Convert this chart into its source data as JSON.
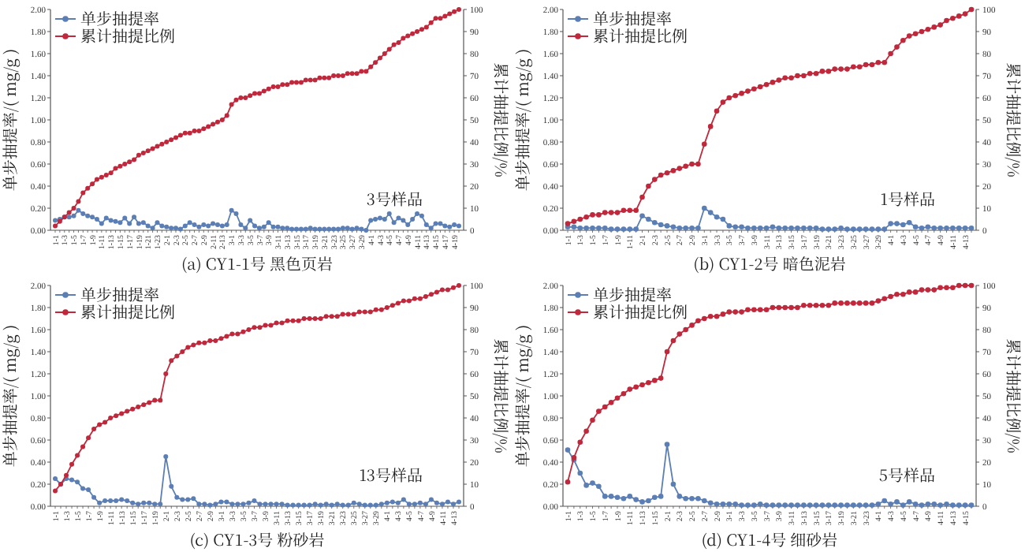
{
  "chart_data": [
    {
      "type": "line",
      "title": "(a) CY1-1号 黑色页岩",
      "ylabel": "单步抽提率/( mg/g )",
      "y2label": "累计抽提比例/%",
      "annotations": [
        "3号样品"
      ],
      "legend": "top left",
      "marker": "circle",
      "grid": false,
      "categories": [
        "1-1",
        null,
        "1-3",
        null,
        "1-5",
        null,
        "1-7",
        null,
        "1-9",
        null,
        "1-11",
        null,
        "1-13",
        null,
        "1-15",
        null,
        "1-17",
        null,
        "1-19",
        null,
        "1-21",
        null,
        "1-23",
        null,
        "2-1",
        null,
        "2-3",
        null,
        "2-5",
        null,
        "2-7",
        null,
        "2-9",
        null,
        "2-11",
        null,
        "2-13",
        null,
        "3-1",
        null,
        "3-3",
        null,
        "3-5",
        null,
        "3-7",
        null,
        "3-9",
        null,
        "3-11",
        null,
        "3-13",
        null,
        "3-15",
        null,
        "3-17",
        null,
        "3-19",
        null,
        "3-21",
        null,
        "3-23",
        null,
        "3-25",
        null,
        "3-27",
        null,
        "3-29",
        null,
        "4-1",
        null,
        "4-3",
        null,
        "4-5",
        null,
        "4-7",
        null,
        "4-9",
        null,
        "4-11",
        null,
        "4-13",
        null,
        "4-15",
        null,
        "4-17",
        null,
        "4-19",
        null
      ],
      "ylim": [
        0,
        2
      ],
      "yticks": [
        {
          "value": 0,
          "label": "0.00"
        },
        {
          "value": 0.2,
          "label": "0.20"
        },
        {
          "value": 0.4,
          "label": "0.40"
        },
        {
          "value": 0.6,
          "label": "0.60"
        },
        {
          "value": 0.8,
          "label": "0.80"
        },
        {
          "value": 1,
          "label": "1.00"
        },
        {
          "value": 1.2,
          "label": "1.20"
        },
        {
          "value": 1.4,
          "label": "1.40"
        },
        {
          "value": 1.6,
          "label": "1.60"
        },
        {
          "value": 1.8,
          "label": "1.80"
        },
        {
          "value": 2,
          "label": "2.00"
        }
      ],
      "y2lim": [
        0,
        100
      ],
      "y2ticks": [
        0,
        10,
        20,
        30,
        40,
        50,
        60,
        70,
        80,
        90,
        100
      ],
      "series": [
        {
          "name": "单步抽提率",
          "color": "#5b7fb5",
          "values": [
            0.09,
            0.1,
            0.12,
            0.12,
            0.13,
            0.18,
            0.15,
            0.13,
            0.12,
            0.1,
            0.06,
            0.11,
            0.09,
            0.08,
            0.07,
            0.11,
            0.06,
            0.12,
            0.06,
            0.07,
            0.04,
            0.02,
            0.07,
            0.04,
            0.03,
            0.02,
            0.02,
            0.01,
            0.04,
            0.07,
            0.05,
            0.03,
            0.05,
            0.04,
            0.06,
            0.05,
            0.04,
            0.05,
            0.18,
            0.15,
            0.05,
            0.02,
            0.09,
            0.04,
            0.02,
            0.03,
            0.07,
            0.03,
            0.03,
            0.02,
            0.02,
            0.01,
            0.01,
            0.01,
            0.01,
            0.02,
            0.01,
            0.01,
            0.01,
            0.01,
            0.01,
            0.01,
            0.02,
            0.02,
            0.01,
            0.02,
            0.01,
            0.0,
            0.09,
            0.1,
            0.11,
            0.1,
            0.15,
            0.07,
            0.11,
            0.09,
            0.05,
            0.1,
            0.15,
            0.13,
            0.05,
            0.02,
            0.06,
            0.06,
            0.04,
            0.03,
            0.05,
            0.04
          ]
        },
        {
          "name": "累计抽提比例",
          "color": "#c0283c",
          "axis": "y2",
          "values": [
            2,
            4,
            6,
            8,
            10,
            13,
            17,
            19,
            21,
            23,
            24,
            25,
            26,
            28,
            29,
            30,
            31,
            32,
            34,
            35,
            36,
            37,
            38,
            39,
            40,
            41,
            42,
            43,
            44,
            44,
            45,
            45,
            46,
            47,
            48,
            49,
            50,
            52,
            57,
            59,
            60,
            60,
            61,
            62,
            62,
            63,
            64,
            65,
            65,
            66,
            66,
            67,
            67,
            67,
            68,
            68,
            68,
            69,
            69,
            69,
            70,
            70,
            70,
            71,
            71,
            71,
            72,
            72,
            74,
            76,
            78,
            80,
            82,
            84,
            85,
            87,
            88,
            89,
            90,
            91,
            92,
            94,
            96,
            96,
            97,
            98,
            99,
            100
          ]
        }
      ]
    },
    {
      "type": "line",
      "title": "(b) CY1-2号 暗色泥岩",
      "ylabel": "单步抽提率/( mg/g )",
      "y2label": "累计抽提比例/%",
      "annotations": [
        "1号样品"
      ],
      "legend": "top left",
      "marker": "circle",
      "grid": false,
      "categories": [
        "1-1",
        null,
        "1-3",
        null,
        "1-5",
        null,
        "1-7",
        null,
        "1-9",
        null,
        "1-11",
        null,
        "2-1",
        null,
        "2-3",
        null,
        "2-5",
        null,
        "2-7",
        null,
        "2-9",
        null,
        "3-1",
        null,
        "3-3",
        null,
        "3-5",
        null,
        "3-7",
        null,
        "3-9",
        null,
        "3-11",
        null,
        "3-13",
        null,
        "3-15",
        null,
        "3-17",
        null,
        "3-19",
        null,
        "3-21",
        null,
        "3-23",
        null,
        "3-25",
        null,
        "3-27",
        null,
        "3-29",
        null,
        "4-1",
        null,
        "4-3",
        null,
        "4-5",
        null,
        "4-7",
        null,
        "4-9",
        null,
        "4-11",
        null,
        "4-13",
        null
      ],
      "ylim": [
        0,
        2
      ],
      "yticks": [
        {
          "value": 0,
          "label": "0.00"
        },
        {
          "value": 0.2,
          "label": "0.20"
        },
        {
          "value": 0.4,
          "label": "0.40"
        },
        {
          "value": 0.6,
          "label": "0.60"
        },
        {
          "value": 0.8,
          "label": "0.80"
        },
        {
          "value": 1,
          "label": "1.00"
        },
        {
          "value": 1.2,
          "label": "1.20"
        },
        {
          "value": 1.4,
          "label": "1.40"
        },
        {
          "value": 1.6,
          "label": "1.60"
        },
        {
          "value": 1.8,
          "label": "1.80"
        },
        {
          "value": 2,
          "label": "2.00"
        }
      ],
      "y2lim": [
        0,
        100
      ],
      "y2ticks": [
        0,
        10,
        20,
        30,
        40,
        50,
        60,
        70,
        80,
        90,
        100
      ],
      "series": [
        {
          "name": "单步抽提率",
          "color": "#5b7fb5",
          "values": [
            0.03,
            0.03,
            0.02,
            0.02,
            0.02,
            0.02,
            0.02,
            0.01,
            0.01,
            0.01,
            0.01,
            0.01,
            0.13,
            0.1,
            0.07,
            0.05,
            0.04,
            0.03,
            0.02,
            0.02,
            0.02,
            0.02,
            0.2,
            0.16,
            0.12,
            0.1,
            0.04,
            0.03,
            0.03,
            0.02,
            0.02,
            0.02,
            0.02,
            0.03,
            0.02,
            0.02,
            0.02,
            0.02,
            0.02,
            0.02,
            0.02,
            0.01,
            0.01,
            0.01,
            0.02,
            0.01,
            0.01,
            0.01,
            0.01,
            0.01,
            0.01,
            0.01,
            0.06,
            0.06,
            0.05,
            0.07,
            0.03,
            0.02,
            0.03,
            0.02,
            0.02,
            0.02,
            0.02,
            0.02,
            0.02,
            0.02
          ]
        },
        {
          "name": "累计抽提比例",
          "color": "#c0283c",
          "axis": "y2",
          "values": [
            3,
            4,
            5,
            6,
            7,
            7,
            8,
            8,
            8,
            9,
            9,
            9,
            15,
            20,
            23,
            25,
            26,
            27,
            28,
            29,
            30,
            30,
            39,
            47,
            54,
            58,
            60,
            61,
            62,
            63,
            64,
            65,
            66,
            67,
            68,
            69,
            69,
            70,
            70,
            71,
            71,
            72,
            72,
            73,
            73,
            73,
            74,
            74,
            75,
            75,
            76,
            76,
            80,
            83,
            86,
            88,
            89,
            90,
            91,
            92,
            93,
            95,
            96,
            97,
            98,
            100
          ]
        }
      ]
    },
    {
      "type": "line",
      "title": "(c)  CY1-3号  粉砂岩",
      "ylabel": "单步抽提率/( mg/g )",
      "y2label": "累计抽提比例/%",
      "annotations": [
        "13号样品"
      ],
      "legend": "top left",
      "marker": "circle",
      "grid": false,
      "categories": [
        "1-1",
        null,
        "1-3",
        null,
        "1-5",
        null,
        "1-7",
        null,
        "1-9",
        null,
        "1-11",
        null,
        "1-13",
        null,
        "1-15",
        null,
        "1-17",
        null,
        "1-19",
        null,
        "2-1",
        null,
        "2-3",
        null,
        "2-5",
        null,
        "2-7",
        null,
        "2-9",
        null,
        "3-1",
        null,
        "3-3",
        null,
        "3-5",
        null,
        "3-7",
        null,
        "3-9",
        null,
        "3-11",
        null,
        "3-13",
        null,
        "3-15",
        null,
        "3-17",
        null,
        "3-19",
        null,
        "3-21",
        null,
        "3-23",
        null,
        "3-25",
        null,
        "3-27",
        null,
        "3-29",
        null,
        "4-1",
        null,
        "4-3",
        null,
        "4-5",
        null,
        "4-7",
        null,
        "4-9",
        null,
        "4-11",
        null,
        "4-13",
        null
      ],
      "ylim": [
        0,
        2
      ],
      "yticks": [
        {
          "value": 0,
          "label": "0.00"
        },
        {
          "value": 0.2,
          "label": "0.20"
        },
        {
          "value": 0.4,
          "label": "0.40"
        },
        {
          "value": 0.6,
          "label": "0.60"
        },
        {
          "value": 0.8,
          "label": "0.80"
        },
        {
          "value": 1,
          "label": "1.00"
        },
        {
          "value": 1.2,
          "label": "1.20"
        },
        {
          "value": 1.4,
          "label": "1.40"
        },
        {
          "value": 1.6,
          "label": "1.60"
        },
        {
          "value": 1.8,
          "label": "1.80"
        },
        {
          "value": 2,
          "label": "2.00"
        }
      ],
      "y2lim": [
        0,
        100
      ],
      "y2ticks": [
        0,
        10,
        20,
        30,
        40,
        50,
        60,
        70,
        80,
        90,
        100
      ],
      "series": [
        {
          "name": "单步抽提率",
          "color": "#5b7fb5",
          "values": [
            0.25,
            0.2,
            0.25,
            0.24,
            0.22,
            0.16,
            0.15,
            0.08,
            0.03,
            0.05,
            0.05,
            0.05,
            0.06,
            0.05,
            0.03,
            0.02,
            0.03,
            0.03,
            0.02,
            0.02,
            0.45,
            0.18,
            0.08,
            0.06,
            0.06,
            0.07,
            0.02,
            0.02,
            0.01,
            0.02,
            0.04,
            0.04,
            0.02,
            0.02,
            0.02,
            0.03,
            0.05,
            0.02,
            0.02,
            0.02,
            0.02,
            0.02,
            0.01,
            0.01,
            0.01,
            0.01,
            0.01,
            0.02,
            0.01,
            0.02,
            0.01,
            0.02,
            0.01,
            0.01,
            0.03,
            0.02,
            0.01,
            0.01,
            0.01,
            0.02,
            0.03,
            0.04,
            0.03,
            0.06,
            0.02,
            0.02,
            0.03,
            0.02,
            0.06,
            0.03,
            0.02,
            0.04,
            0.02,
            0.04
          ]
        },
        {
          "name": "累计抽提比例",
          "color": "#c0283c",
          "axis": "y2",
          "values": [
            7,
            10,
            14,
            19,
            23,
            27,
            31,
            35,
            37,
            38,
            40,
            41,
            42,
            43,
            44,
            45,
            46,
            47,
            48,
            48,
            60,
            66,
            68,
            70,
            72,
            73,
            74,
            74,
            75,
            75,
            76,
            77,
            78,
            78,
            79,
            80,
            81,
            81,
            82,
            82,
            83,
            83,
            84,
            84,
            84,
            85,
            85,
            85,
            85,
            86,
            86,
            86,
            87,
            87,
            87,
            88,
            88,
            88,
            89,
            89,
            90,
            91,
            92,
            93,
            93,
            94,
            94,
            95,
            96,
            97,
            98,
            98,
            99,
            100
          ]
        }
      ]
    },
    {
      "type": "line",
      "title": "(d)  CY1-4号  细砂岩",
      "ylabel": "单步抽提率/( mg/g )",
      "y2label": "累计抽提比例/%",
      "annotations": [
        "5号样品"
      ],
      "legend": "top left",
      "marker": "circle",
      "grid": false,
      "categories": [
        "1-1",
        null,
        "1-3",
        null,
        "1-5",
        null,
        "1-7",
        null,
        "1-9",
        null,
        "1-11",
        null,
        "1-13",
        null,
        "1-15",
        null,
        "2-1",
        null,
        "2-3",
        null,
        "2-5",
        null,
        "2-7",
        null,
        "2-9",
        null,
        "3-1",
        null,
        "3-3",
        null,
        "3-5",
        null,
        "3-7",
        null,
        "3-9",
        null,
        "3-11",
        null,
        "3-13",
        null,
        "3-15",
        null,
        "3-17",
        null,
        "3-19",
        null,
        "3-21",
        null,
        "3-23",
        null,
        "4-1",
        null,
        "4-3",
        null,
        "4-5",
        null,
        "4-7",
        null,
        "4-9",
        null,
        "4-11",
        null,
        "4-13",
        null,
        "4-15",
        null
      ],
      "ylim": [
        0,
        2
      ],
      "yticks": [
        {
          "value": 0,
          "label": "0.00"
        },
        {
          "value": 0.2,
          "label": "0.20"
        },
        {
          "value": 0.4,
          "label": "0.40"
        },
        {
          "value": 0.6,
          "label": "0.60"
        },
        {
          "value": 0.8,
          "label": "0.80"
        },
        {
          "value": 1,
          "label": "1.00"
        },
        {
          "value": 1.2,
          "label": "1.20"
        },
        {
          "value": 1.4,
          "label": "1.40"
        },
        {
          "value": 1.6,
          "label": "1.60"
        },
        {
          "value": 1.8,
          "label": "1.80"
        },
        {
          "value": 2,
          "label": "2.00"
        }
      ],
      "y2lim": [
        0,
        100
      ],
      "y2ticks": [
        0,
        10,
        20,
        30,
        40,
        50,
        60,
        70,
        80,
        90,
        100
      ],
      "series": [
        {
          "name": "单步抽提率",
          "color": "#5b7fb5",
          "values": [
            0.51,
            0.42,
            0.3,
            0.19,
            0.21,
            0.18,
            0.09,
            0.09,
            0.08,
            0.07,
            0.09,
            0.06,
            0.04,
            0.05,
            0.08,
            0.09,
            0.56,
            0.2,
            0.09,
            0.07,
            0.07,
            0.07,
            0.05,
            0.03,
            0.02,
            0.02,
            0.02,
            0.02,
            0.01,
            0.01,
            0.01,
            0.02,
            0.01,
            0.01,
            0.01,
            0.01,
            0.01,
            0.01,
            0.01,
            0.01,
            0.01,
            0.01,
            0.01,
            0.01,
            0.01,
            0.01,
            0.01,
            0.01,
            0.01,
            0.01,
            0.02,
            0.05,
            0.02,
            0.04,
            0.01,
            0.04,
            0.02,
            0.01,
            0.02,
            0.02,
            0.01,
            0.02,
            0.01,
            0.01,
            0.01,
            0.01
          ]
        },
        {
          "name": "累计抽提比例",
          "color": "#c0283c",
          "axis": "y2",
          "values": [
            11,
            22,
            29,
            34,
            39,
            43,
            45,
            47,
            49,
            51,
            53,
            54,
            55,
            56,
            57,
            58,
            70,
            75,
            78,
            80,
            82,
            84,
            85,
            86,
            86,
            87,
            88,
            88,
            88,
            89,
            89,
            89,
            89,
            90,
            90,
            90,
            90,
            90,
            91,
            91,
            91,
            91,
            91,
            92,
            92,
            92,
            92,
            92,
            92,
            92,
            93,
            94,
            95,
            96,
            96,
            97,
            97,
            98,
            98,
            98,
            99,
            99,
            99,
            100,
            100,
            100
          ]
        }
      ]
    }
  ]
}
